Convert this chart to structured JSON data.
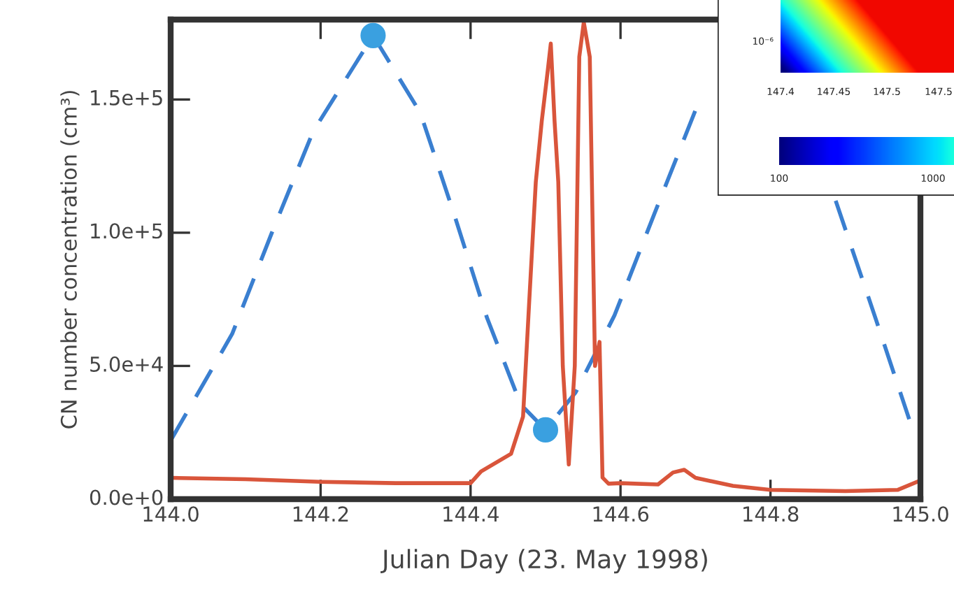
{
  "chart_data": [
    {
      "type": "line",
      "xlabel": "Julian Day (23. May 1998)",
      "ylabel": "CN number concentration (cm³)",
      "xlim": [
        144.0,
        145.0
      ],
      "ylim": [
        0,
        180000
      ],
      "xticks": [
        {
          "value": 144.0,
          "label": "144.0"
        },
        {
          "value": 144.2,
          "label": "144.2"
        },
        {
          "value": 144.4,
          "label": "144.4"
        },
        {
          "value": 144.6,
          "label": "144.6"
        },
        {
          "value": 144.8,
          "label": "144.8"
        },
        {
          "value": 145.0,
          "label": "145.0"
        }
      ],
      "yticks": [
        {
          "value": 0,
          "label": "0.0e+0"
        },
        {
          "value": 50000,
          "label": "5.0e+4"
        },
        {
          "value": 100000,
          "label": "1.0e+5"
        },
        {
          "value": 150000,
          "label": "1.5e+5"
        }
      ],
      "grid": false,
      "legend": false,
      "series": [
        {
          "color": "#3a7fd0",
          "line_style": "dashed",
          "marker": "none",
          "x": [
            144.0,
            144.082,
            144.135,
            144.19,
            144.27,
            144.333,
            144.378,
            144.422,
            144.467,
            144.5,
            144.54,
            144.592,
            144.645,
            144.7,
            144.73,
            144.887,
            144.94,
            144.985
          ],
          "values": [
            22000,
            62000,
            100000,
            138000,
            174000,
            145000,
            107000,
            68000,
            35500,
            26000,
            40000,
            69000,
            107000,
            146000,
            null,
            112000,
            68000,
            30000
          ]
        },
        {
          "color": "#d9553b",
          "line_style": "solid",
          "marker": "none",
          "x": [
            144.0,
            144.1,
            144.2,
            144.3,
            144.4,
            144.414,
            144.454,
            144.47,
            144.478,
            144.487,
            144.495,
            144.503,
            144.507,
            144.512,
            144.517,
            144.523,
            144.531,
            144.539,
            144.545,
            144.551,
            144.559,
            144.566,
            144.572,
            144.576,
            144.584,
            144.6,
            144.65,
            144.67,
            144.685,
            144.7,
            144.75,
            144.8,
            144.9,
            144.97,
            145.0
          ],
          "values": [
            8000,
            7500,
            6500,
            6000,
            6000,
            10400,
            17000,
            31000,
            73000,
            119000,
            142000,
            161000,
            171000,
            142000,
            119000,
            50000,
            13000,
            50000,
            166000,
            179000,
            166000,
            50000,
            59000,
            8100,
            5800,
            6000,
            5500,
            10000,
            11000,
            8000,
            5000,
            3500,
            3000,
            3500,
            7000
          ]
        },
        {
          "type": "scatter",
          "color": "#3aa0e0",
          "marker": "circle",
          "x": [
            144.27,
            144.5
          ],
          "values": [
            174000,
            26000
          ]
        }
      ]
    },
    {
      "type": "other",
      "annotations": [
        "10⁻⁶",
        "147.4",
        "147.45",
        "147.5",
        "147.5",
        "100",
        "1000"
      ]
    }
  ]
}
